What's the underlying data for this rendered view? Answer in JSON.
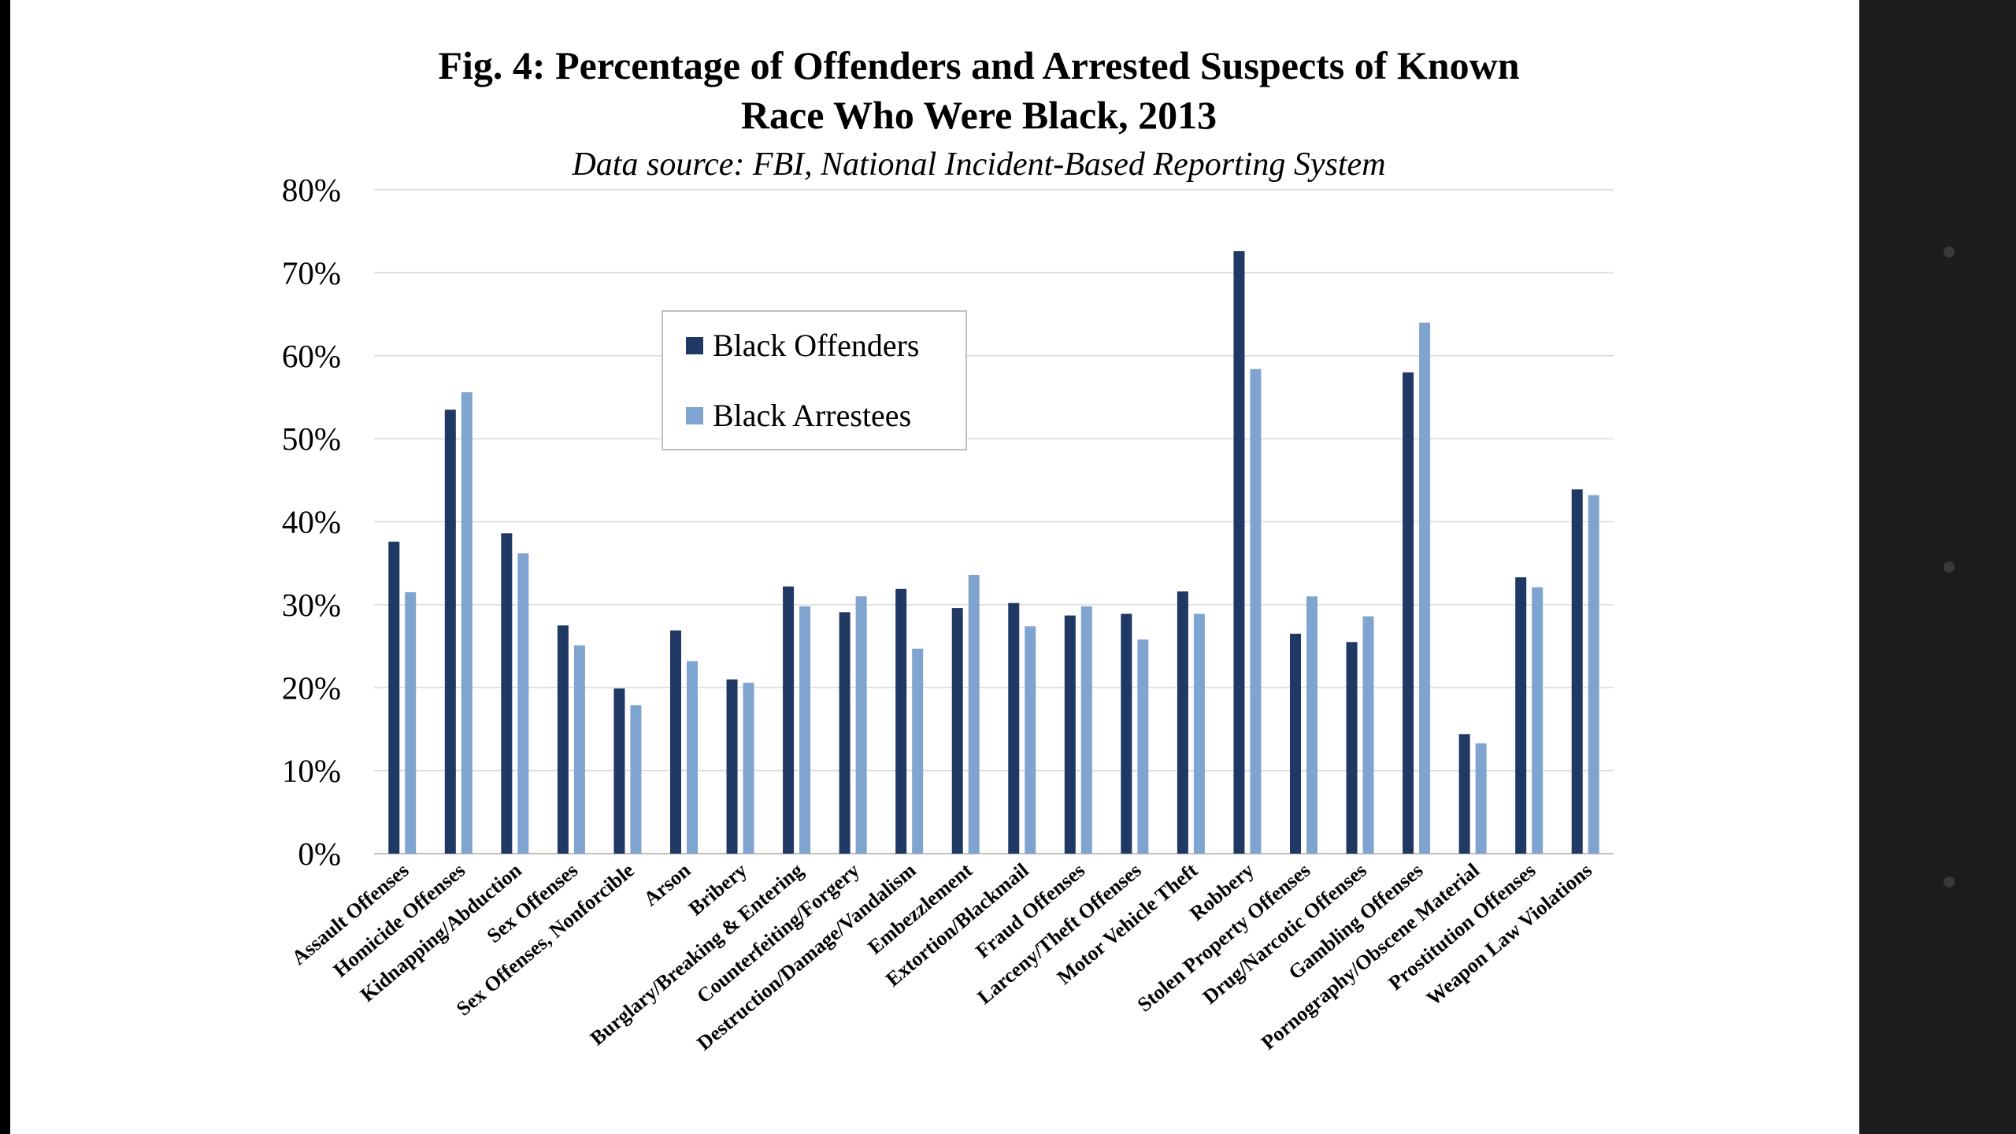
{
  "colors": {
    "offenders": "#203864",
    "arrestees": "#7fa4cf",
    "grid": "#d9d9d9",
    "axis": "#bfbfbf",
    "background": "#ffffff",
    "frame": "#000000",
    "side_panel": "#1c1c1c"
  },
  "chart_data": {
    "type": "bar",
    "title_line1": "Fig. 4: Percentage of Offenders and Arrested Suspects of Known",
    "title_line2": "Race Who Were Black, 2013",
    "subtitle": "Data source: FBI, National Incident-Based Reporting System",
    "xlabel": "",
    "ylabel": "",
    "ylim": [
      0,
      80
    ],
    "y_ticks": [
      0,
      10,
      20,
      30,
      40,
      50,
      60,
      70,
      80
    ],
    "y_tick_labels": [
      "0%",
      "10%",
      "20%",
      "30%",
      "40%",
      "50%",
      "60%",
      "70%",
      "80%"
    ],
    "grid": true,
    "legend_position": "top-center",
    "categories": [
      "Assault Offenses",
      "Homicide Offenses",
      "Kidnapping/Abduction",
      "Sex Offenses",
      "Sex Offenses, Nonforcible",
      "Arson",
      "Bribery",
      "Burglary/Breaking & Entering",
      "Counterfeiting/Forgery",
      "Destruction/Damage/Vandalism",
      "Embezzlement",
      "Extortion/Blackmail",
      "Fraud Offenses",
      "Larceny/Theft Offenses",
      "Motor Vehicle Theft",
      "Robbery",
      "Stolen Property Offenses",
      "Drug/Narcotic Offenses",
      "Gambling Offenses",
      "Pornography/Obscene Material",
      "Prostitution Offenses",
      "Weapon Law Violations"
    ],
    "series": [
      {
        "name": "Black Offenders",
        "color_key": "offenders",
        "values": [
          37.6,
          53.5,
          38.6,
          27.5,
          19.9,
          26.9,
          21.0,
          32.2,
          29.1,
          31.9,
          29.6,
          30.2,
          28.7,
          28.9,
          31.6,
          72.6,
          26.5,
          25.5,
          58.0,
          14.4,
          33.3,
          43.9
        ]
      },
      {
        "name": "Black Arrestees",
        "color_key": "arrestees",
        "values": [
          31.5,
          55.6,
          36.2,
          25.1,
          17.9,
          23.2,
          20.6,
          29.8,
          31.0,
          24.7,
          33.6,
          27.4,
          29.8,
          25.8,
          28.9,
          58.4,
          31.0,
          28.6,
          64.0,
          13.3,
          32.1,
          43.2
        ]
      }
    ]
  }
}
